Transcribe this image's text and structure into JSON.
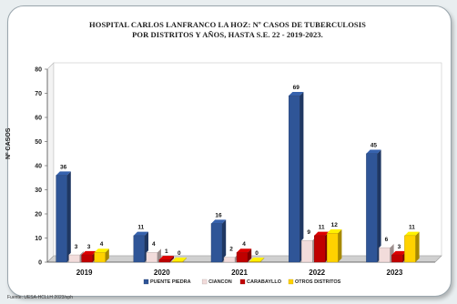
{
  "chart_data": {
    "type": "bar",
    "title_line1": "HOSPITAL CARLOS LANFRANCO LA HOZ:  Nº CASOS DE TUBERCULOSIS",
    "title_line2": "POR DISTRITOS Y AÑOS, HASTA S.E.  22 - 2019-2023.",
    "ylabel": "Nº CASOS",
    "ylim": [
      0,
      80
    ],
    "yticks": [
      0,
      10,
      20,
      30,
      40,
      50,
      60,
      70,
      80
    ],
    "categories": [
      "2019",
      "2020",
      "2021",
      "2022",
      "2023"
    ],
    "series": [
      {
        "name": "PUENTE PIEDRA",
        "color": "#2f5597",
        "values": [
          36,
          11,
          16,
          69,
          45
        ],
        "labels": [
          "36",
          "11",
          "16",
          "69",
          "45"
        ]
      },
      {
        "name": "CIANCON",
        "color": "#f2dcdb",
        "values": [
          3,
          4,
          2,
          9,
          6
        ],
        "labels": [
          "3",
          "4",
          "2",
          "9",
          "6"
        ]
      },
      {
        "name": "CARABAYLLO",
        "color": "#c00000",
        "values": [
          3,
          1,
          4,
          11,
          3
        ],
        "labels": [
          "3",
          "1",
          "4",
          "11",
          "3"
        ]
      },
      {
        "name": "OTROS DISTRITOS",
        "color": "#ffd200",
        "values": [
          4,
          0,
          0,
          12,
          11
        ],
        "labels": [
          "4",
          "0",
          "0",
          "12",
          "11"
        ]
      }
    ],
    "grid": false,
    "legend": "bottom",
    "source": "Fuente: UESA-HCLLH 2023/sph"
  }
}
